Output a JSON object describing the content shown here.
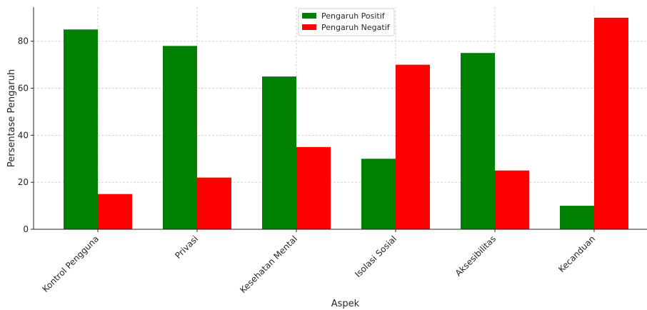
{
  "chart_data": {
    "type": "bar",
    "title": "",
    "xlabel": "Aspek",
    "ylabel": "Persentase Pengaruh",
    "categories": [
      "Kontrol Pengguna",
      "Privasi",
      "Kesehatan Mental",
      "Isolasi Sosial",
      "Aksesibilitas",
      "Kecanduan"
    ],
    "series": [
      {
        "name": "Pengaruh Positif",
        "color": "#008000",
        "values": [
          85,
          78,
          65,
          30,
          75,
          10
        ]
      },
      {
        "name": "Pengaruh Negatif",
        "color": "#ff0000",
        "values": [
          15,
          22,
          35,
          70,
          25,
          90
        ]
      }
    ],
    "ylim": [
      0,
      94.5
    ],
    "yticks": [
      "0",
      "20",
      "40",
      "60",
      "80"
    ],
    "grid": true,
    "legend_position": "top-center"
  }
}
